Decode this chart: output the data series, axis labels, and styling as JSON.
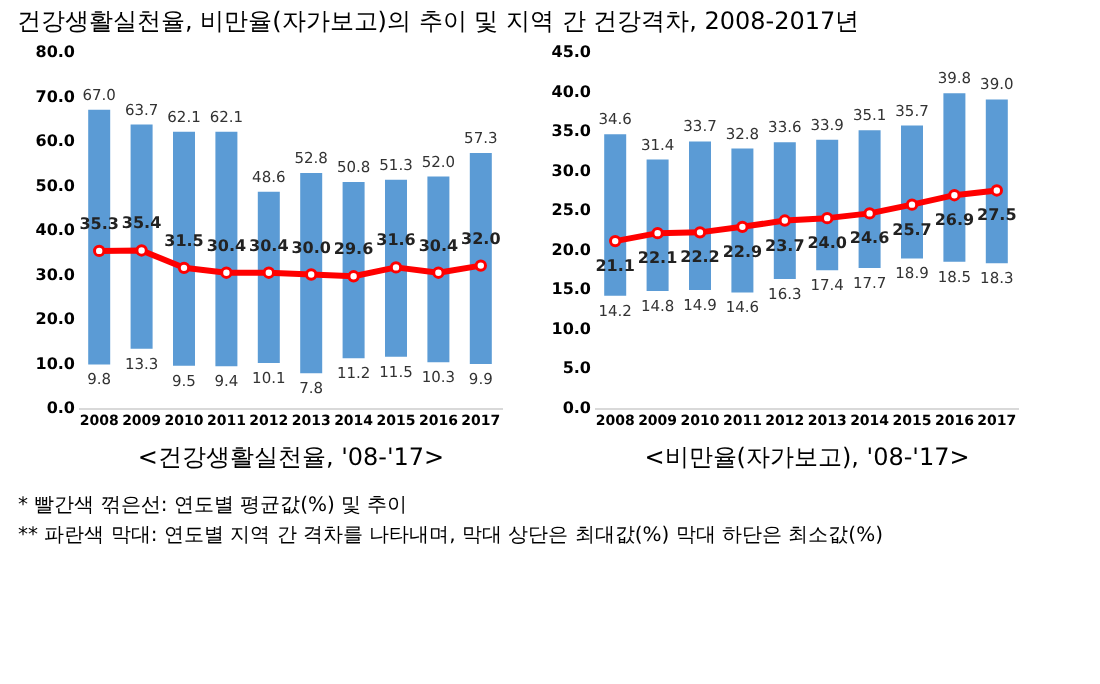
{
  "chart_data": [
    {
      "type": "bar",
      "title": "건강생활실천율, 비만율(자가보고)의 추이 및 지역 간 건강격차, 2008-2017년",
      "xlabel": "<건강생활실천율, '08-'17>",
      "categories": [
        "2008",
        "2009",
        "2010",
        "2011",
        "2012",
        "2013",
        "2014",
        "2015",
        "2016",
        "2017"
      ],
      "series": [
        {
          "type": "bar",
          "color": "#5b9bd5",
          "base": [
            9.8,
            13.3,
            9.5,
            9.4,
            10.1,
            7.8,
            11.2,
            11.5,
            10.3,
            9.9
          ],
          "values": [
            57.2,
            50.4,
            52.6,
            52.7,
            38.5,
            45.0,
            39.6,
            39.8,
            41.7,
            47.4
          ]
        },
        {
          "type": "line",
          "color": "#ff0000",
          "marker": "circle",
          "values": [
            35.3,
            35.4,
            31.5,
            30.4,
            30.4,
            30.0,
            29.6,
            31.6,
            30.4,
            32.0
          ],
          "value_labels": [
            "35.3",
            "35.4",
            "31.5",
            "30.4",
            "30.4",
            "30.0",
            "29.6",
            "31.6",
            "30.4",
            "32.0"
          ]
        }
      ],
      "ylim": [
        0,
        80
      ],
      "yticks": [
        {
          "value": 0,
          "label": "0.0"
        },
        {
          "value": 10,
          "label": "10.0"
        },
        {
          "value": 20,
          "label": "20.0"
        },
        {
          "value": 30,
          "label": "30.0"
        },
        {
          "value": 40,
          "label": "40.0"
        },
        {
          "value": 50,
          "label": "50.0"
        },
        {
          "value": 60,
          "label": "60.0"
        },
        {
          "value": 70,
          "label": "70.0"
        },
        {
          "value": 80,
          "label": "80.0"
        }
      ],
      "grid": false,
      "legend": false,
      "annotations": [
        {
          "text": "67.0",
          "x": "2008",
          "y": 67.0
        },
        {
          "text": "63.7",
          "x": "2009",
          "y": 63.7
        },
        {
          "text": "62.1",
          "x": "2010",
          "y": 62.1
        },
        {
          "text": "62.1",
          "x": "2011",
          "y": 62.1
        },
        {
          "text": "48.6",
          "x": "2012",
          "y": 48.6
        },
        {
          "text": "52.8",
          "x": "2013",
          "y": 52.8
        },
        {
          "text": "50.8",
          "x": "2014",
          "y": 50.8
        },
        {
          "text": "51.3",
          "x": "2015",
          "y": 51.3
        },
        {
          "text": "52.0",
          "x": "2016",
          "y": 52.0
        },
        {
          "text": "57.3",
          "x": "2017",
          "y": 57.3
        },
        {
          "text": "9.8",
          "x": "2008",
          "y": 9.8
        },
        {
          "text": "13.3",
          "x": "2009",
          "y": 13.3
        },
        {
          "text": "9.5",
          "x": "2010",
          "y": 9.5
        },
        {
          "text": "9.4",
          "x": "2011",
          "y": 9.4
        },
        {
          "text": "10.1",
          "x": "2012",
          "y": 10.1
        },
        {
          "text": "7.8",
          "x": "2013",
          "y": 7.8
        },
        {
          "text": "11.2",
          "x": "2014",
          "y": 11.2
        },
        {
          "text": "11.5",
          "x": "2015",
          "y": 11.5
        },
        {
          "text": "10.3",
          "x": "2016",
          "y": 10.3
        },
        {
          "text": "9.9",
          "x": "2017",
          "y": 9.9
        }
      ]
    },
    {
      "type": "bar",
      "xlabel": "<비만율(자가보고), '08-'17>",
      "categories": [
        "2008",
        "2009",
        "2010",
        "2011",
        "2012",
        "2013",
        "2014",
        "2015",
        "2016",
        "2017"
      ],
      "series": [
        {
          "type": "bar",
          "color": "#5b9bd5",
          "base": [
            14.2,
            14.8,
            14.9,
            14.6,
            16.3,
            17.4,
            17.7,
            18.9,
            18.5,
            18.3
          ],
          "values": [
            20.4,
            16.6,
            18.8,
            18.2,
            17.3,
            16.5,
            17.4,
            16.8,
            21.3,
            20.7
          ]
        },
        {
          "type": "line",
          "color": "#ff0000",
          "marker": "circle",
          "values": [
            21.1,
            22.1,
            22.2,
            22.9,
            23.7,
            24.0,
            24.6,
            25.7,
            26.9,
            27.5
          ],
          "value_labels": [
            "21.1",
            "22.1",
            "22.2",
            "22.9",
            "23.7",
            "24.0",
            "24.6",
            "25.7",
            "26.9",
            "27.5"
          ]
        }
      ],
      "ylim": [
        0,
        45
      ],
      "yticks": [
        {
          "value": 0,
          "label": "0.0"
        },
        {
          "value": 5,
          "label": "5.0"
        },
        {
          "value": 10,
          "label": "10.0"
        },
        {
          "value": 15,
          "label": "15.0"
        },
        {
          "value": 20,
          "label": "20.0"
        },
        {
          "value": 25,
          "label": "25.0"
        },
        {
          "value": 30,
          "label": "30.0"
        },
        {
          "value": 35,
          "label": "35.0"
        },
        {
          "value": 40,
          "label": "40.0"
        },
        {
          "value": 45,
          "label": "45.0"
        }
      ],
      "grid": false,
      "legend": false,
      "annotations": [
        {
          "text": "34.6",
          "x": "2008",
          "y": 34.6
        },
        {
          "text": "31.4",
          "x": "2009",
          "y": 31.4
        },
        {
          "text": "33.7",
          "x": "2010",
          "y": 33.7
        },
        {
          "text": "32.8",
          "x": "2011",
          "y": 32.8
        },
        {
          "text": "33.6",
          "x": "2012",
          "y": 33.6
        },
        {
          "text": "33.9",
          "x": "2013",
          "y": 33.9
        },
        {
          "text": "35.1",
          "x": "2014",
          "y": 35.1
        },
        {
          "text": "35.7",
          "x": "2015",
          "y": 35.7
        },
        {
          "text": "39.8",
          "x": "2016",
          "y": 39.8
        },
        {
          "text": "39.0",
          "x": "2017",
          "y": 39.0
        },
        {
          "text": "14.2",
          "x": "2008",
          "y": 14.2
        },
        {
          "text": "14.8",
          "x": "2009",
          "y": 14.8
        },
        {
          "text": "14.9",
          "x": "2010",
          "y": 14.9
        },
        {
          "text": "14.6",
          "x": "2011",
          "y": 14.6
        },
        {
          "text": "16.3",
          "x": "2012",
          "y": 16.3
        },
        {
          "text": "17.4",
          "x": "2013",
          "y": 17.4
        },
        {
          "text": "17.7",
          "x": "2014",
          "y": 17.7
        },
        {
          "text": "18.9",
          "x": "2015",
          "y": 18.9
        },
        {
          "text": "18.5",
          "x": "2016",
          "y": 18.5
        },
        {
          "text": "18.3",
          "x": "2017",
          "y": 18.3
        },
        "* 빨간색 꺾은선: 연도별 평균값(%) 및 추이",
        "** 파란색 막대: 연도별 지역 간 격차를 나타내며, 막대 상단은 최대값(%) 막대 하단은 최소값(%)"
      ]
    }
  ]
}
